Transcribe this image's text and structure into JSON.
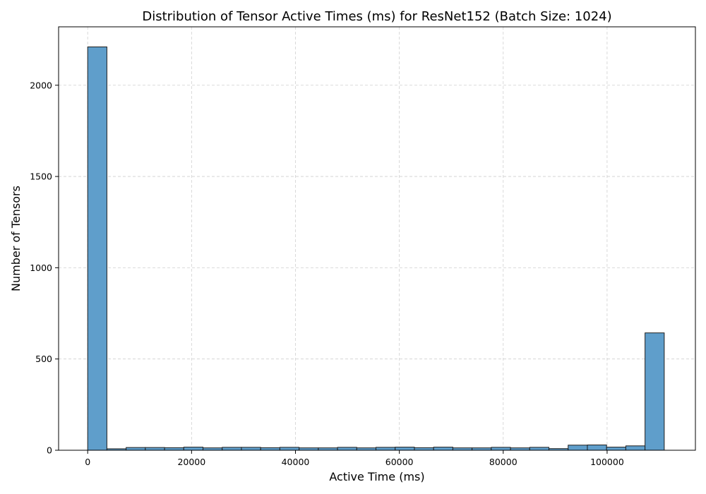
{
  "chart_data": {
    "type": "bar",
    "title": "Distribution of Tensor Active Times (ms) for ResNet152 (Batch Size: 1024)",
    "xlabel": "Active Time (ms)",
    "ylabel": "Number of Tensors",
    "xlim": [
      -5600,
      117000
    ],
    "ylim": [
      0,
      2320
    ],
    "xticks": [
      0,
      20000,
      40000,
      60000,
      80000,
      100000
    ],
    "yticks": [
      0,
      500,
      1000,
      1500,
      2000
    ],
    "grid": true,
    "bar_color": "#5f9ecb",
    "bin_edges": [
      0,
      3700,
      7400,
      11100,
      14800,
      18500,
      22200,
      25900,
      29600,
      33300,
      37000,
      40700,
      44400,
      48100,
      51800,
      55500,
      59200,
      62900,
      66600,
      70300,
      74000,
      77700,
      81400,
      85100,
      88800,
      92500,
      96200,
      99900,
      103600,
      107300,
      111000
    ],
    "values": [
      2210,
      8,
      15,
      15,
      14,
      17,
      13,
      16,
      16,
      14,
      16,
      13,
      13,
      16,
      13,
      16,
      17,
      14,
      17,
      13,
      13,
      16,
      13,
      16,
      9,
      28,
      29,
      17,
      24,
      643
    ]
  }
}
